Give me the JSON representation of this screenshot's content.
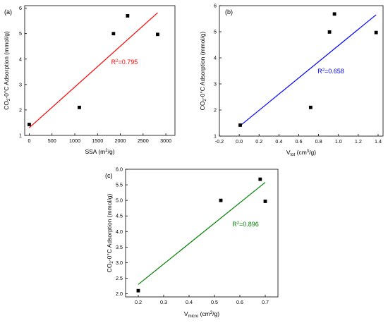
{
  "colors": {
    "panel_a_fit": "#ff0000",
    "panel_b_fit": "#0000ff",
    "panel_c_fit": "#008000",
    "markers": "#000000"
  },
  "chart_data": [
    {
      "type": "scatter",
      "panel_label": "(a)",
      "xlabel": {
        "main": "SSA (m",
        "sup": "2",
        "tail": "/g)"
      },
      "ylabel": {
        "pre": "CO",
        "sub": "2",
        "post": "-0°C Adsorption (mmol/g)"
      },
      "xlim": [
        -100,
        3200
      ],
      "ylim": [
        1,
        6.1
      ],
      "xticks": [
        0,
        500,
        1000,
        1500,
        2000,
        2500,
        3000
      ],
      "xtick_labels": [
        "0",
        "500",
        "1000",
        "1500",
        "2000",
        "2500",
        "3000"
      ],
      "yticks": [
        1,
        2,
        3,
        4,
        5,
        6
      ],
      "ytick_labels": [
        "1",
        "2",
        "3",
        "4",
        "5",
        "6"
      ],
      "points": [
        [
          0,
          1.43
        ],
        [
          1100,
          2.1
        ],
        [
          1850,
          5.0
        ],
        [
          2160,
          5.7
        ],
        [
          2820,
          4.97
        ]
      ],
      "fit_line": [
        [
          0,
          1.3
        ],
        [
          2820,
          5.82
        ]
      ],
      "fit_color": "#ff0000",
      "r2": {
        "pre": "R",
        "sup": "2",
        "post": "=0.795"
      },
      "r2_at": [
        1800,
        3.8
      ]
    },
    {
      "type": "scatter",
      "panel_label": "(b)",
      "xlabel": {
        "main": "V",
        "sub": "tot",
        "tail": " (cm",
        "sup": "3",
        "tail2": "/g)"
      },
      "ylabel": {
        "pre": "CO",
        "sub": "2",
        "post": "-0°C Adsorption (mmol/g)"
      },
      "xlim": [
        -0.2,
        1.45
      ],
      "ylim": [
        1,
        6
      ],
      "xticks": [
        -0.2,
        0.0,
        0.2,
        0.4,
        0.6,
        0.8,
        1.0,
        1.2,
        1.4
      ],
      "xtick_labels": [
        "-0.2",
        "0.0",
        "0.2",
        "0.4",
        "0.6",
        "0.8",
        "1.0",
        "1.2",
        "1.4"
      ],
      "yticks": [
        1,
        2,
        3,
        4,
        5,
        6
      ],
      "ytick_labels": [
        "1",
        "2",
        "3",
        "4",
        "5",
        "6"
      ],
      "points": [
        [
          0.01,
          1.42
        ],
        [
          0.72,
          2.1
        ],
        [
          0.91,
          4.99
        ],
        [
          0.96,
          5.68
        ],
        [
          1.38,
          4.97
        ]
      ],
      "fit_line": [
        [
          0.01,
          1.4
        ],
        [
          1.38,
          5.65
        ]
      ],
      "fit_color": "#0000ff",
      "r2": {
        "pre": "R",
        "sup": "2",
        "post": "=0.658"
      },
      "r2_at": [
        0.79,
        3.4
      ]
    },
    {
      "type": "scatter",
      "panel_label": "(c)",
      "xlabel": {
        "main": "V",
        "sub": "micro",
        "tail": " (cm",
        "sup": "3",
        "tail2": "/g)"
      },
      "ylabel": {
        "pre": "CO",
        "sub": "2",
        "post": "-0°C Adsorption (mmol/g)"
      },
      "xlim": [
        0.15,
        0.75
      ],
      "ylim": [
        1.9,
        6.0
      ],
      "xticks": [
        0.2,
        0.3,
        0.4,
        0.5,
        0.6,
        0.7
      ],
      "xtick_labels": [
        "0.2",
        "0.3",
        "0.4",
        "0.5",
        "0.6",
        "0.7"
      ],
      "yticks": [
        2.0,
        2.5,
        3.0,
        3.5,
        4.0,
        4.5,
        5.0,
        5.5,
        6.0
      ],
      "ytick_labels": [
        "2.0",
        "2.5",
        "3.0",
        "3.5",
        "4.0",
        "4.5",
        "5.0",
        "5.5",
        "6.0"
      ],
      "points": [
        [
          0.2,
          2.1
        ],
        [
          0.525,
          5.0
        ],
        [
          0.68,
          5.68
        ],
        [
          0.7,
          4.97
        ]
      ],
      "fit_line": [
        [
          0.2,
          2.3
        ],
        [
          0.7,
          5.58
        ]
      ],
      "fit_color": "#008000",
      "r2": {
        "pre": "R",
        "sup": "2",
        "post": "=0.896"
      },
      "r2_at": [
        0.57,
        4.17
      ]
    }
  ]
}
